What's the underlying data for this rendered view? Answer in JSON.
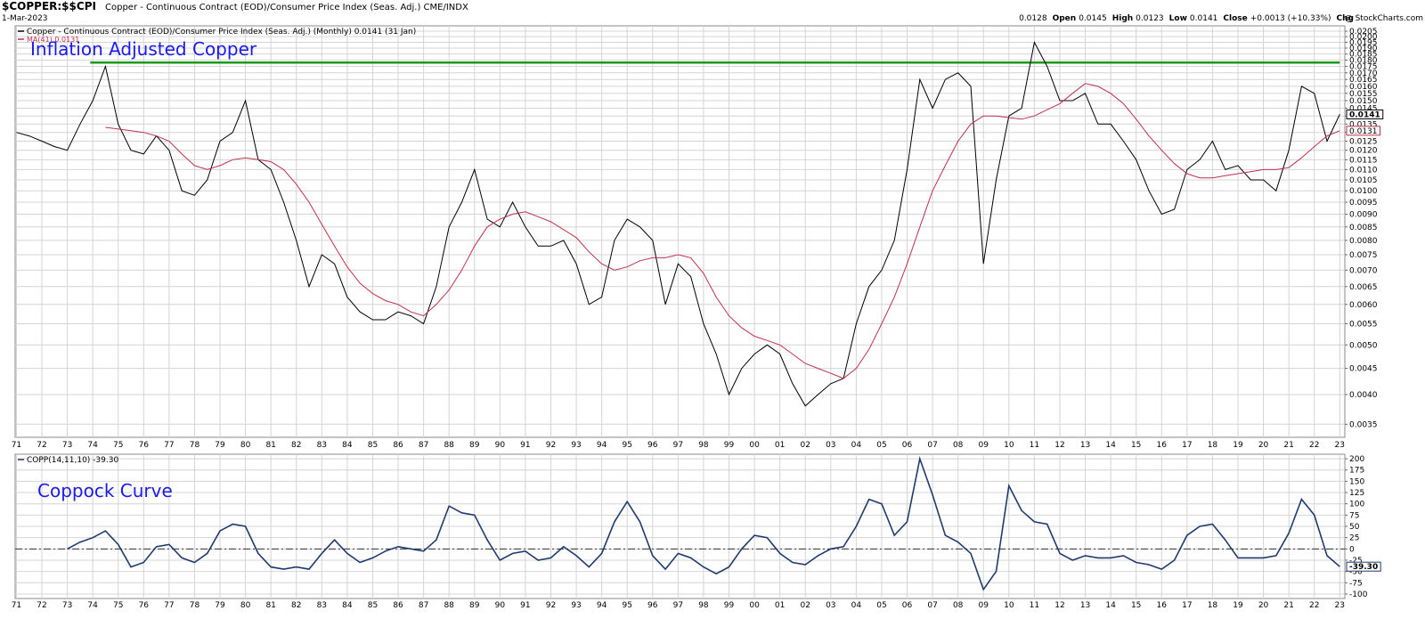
{
  "header": {
    "symbol": "$COPPER:$$CPI",
    "description": "Copper - Continuous Contract (EOD)/Consumer Price Index (Seas. Adj.) CME/INDX",
    "date": "1-Mar-2023",
    "source": "@ StockCharts.com",
    "quote": [
      {
        "label": "Open",
        "value": "0.0128"
      },
      {
        "label": "High",
        "value": "0.0145"
      },
      {
        "label": "Low",
        "value": "0.0123"
      },
      {
        "label": "Close",
        "value": "0.0141"
      },
      {
        "label": "Chg",
        "value": "+0.0013 (+10.33%)"
      }
    ]
  },
  "chart_data": [
    {
      "type": "line",
      "annotation": "Inflation Adjusted Copper",
      "log_scale": true,
      "grid": true,
      "x": [
        1971,
        1971.5,
        1972,
        1972.5,
        1973,
        1973.5,
        1974,
        1974.5,
        1975,
        1975.5,
        1976,
        1976.5,
        1977,
        1977.5,
        1978,
        1978.5,
        1979,
        1979.5,
        1980,
        1980.5,
        1981,
        1981.5,
        1982,
        1982.5,
        1983,
        1983.5,
        1984,
        1984.5,
        1985,
        1985.5,
        1986,
        1986.5,
        1987,
        1987.5,
        1988,
        1988.5,
        1989,
        1989.5,
        1990,
        1990.5,
        1991,
        1991.5,
        1992,
        1992.5,
        1993,
        1993.5,
        1994,
        1994.5,
        1995,
        1995.5,
        1996,
        1996.5,
        1997,
        1997.5,
        1998,
        1998.5,
        1999,
        1999.5,
        2000,
        2000.5,
        2001,
        2001.5,
        2002,
        2002.5,
        2003,
        2003.5,
        2004,
        2004.5,
        2005,
        2005.5,
        2006,
        2006.5,
        2007,
        2007.5,
        2008,
        2008.5,
        2009,
        2009.5,
        2010,
        2010.5,
        2011,
        2011.5,
        2012,
        2012.5,
        2013,
        2013.5,
        2014,
        2014.5,
        2015,
        2015.5,
        2016,
        2016.5,
        2017,
        2017.5,
        2018,
        2018.5,
        2019,
        2019.5,
        2020,
        2020.5,
        2021,
        2021.5,
        2022,
        2022.5,
        2023
      ],
      "series": [
        {
          "name": "Copper - Continuous Contract (EOD)/Consumer Price Index (Seas. Adj.) (Monthly) 0.0141 (31 Jan)",
          "color": "#000000",
          "last_label": "0.0141",
          "values": [
            0.013,
            0.0128,
            0.0125,
            0.0122,
            0.012,
            0.0135,
            0.015,
            0.0175,
            0.0135,
            0.012,
            0.0118,
            0.0128,
            0.012,
            0.01,
            0.0098,
            0.0105,
            0.0125,
            0.013,
            0.015,
            0.0115,
            0.011,
            0.0095,
            0.008,
            0.0065,
            0.0075,
            0.0072,
            0.0062,
            0.0058,
            0.0056,
            0.0056,
            0.0058,
            0.0057,
            0.0055,
            0.0065,
            0.0085,
            0.0095,
            0.011,
            0.0088,
            0.0085,
            0.0095,
            0.0085,
            0.0078,
            0.0078,
            0.008,
            0.0072,
            0.006,
            0.0062,
            0.008,
            0.0088,
            0.0085,
            0.008,
            0.006,
            0.0072,
            0.0068,
            0.0055,
            0.0048,
            0.004,
            0.0045,
            0.0048,
            0.005,
            0.0048,
            0.0042,
            0.0038,
            0.004,
            0.0042,
            0.0043,
            0.0055,
            0.0065,
            0.007,
            0.008,
            0.011,
            0.0165,
            0.0145,
            0.0165,
            0.017,
            0.016,
            0.0072,
            0.0105,
            0.014,
            0.0145,
            0.0195,
            0.0175,
            0.015,
            0.015,
            0.0155,
            0.0135,
            0.0135,
            0.0125,
            0.0115,
            0.01,
            0.009,
            0.0092,
            0.011,
            0.0115,
            0.0125,
            0.011,
            0.0112,
            0.0105,
            0.0105,
            0.01,
            0.012,
            0.016,
            0.0155,
            0.0125,
            0.0141
          ]
        },
        {
          "name": "MA(41) 0.0131",
          "color": "#c0304a",
          "last_label": "0.0131",
          "values": [
            null,
            null,
            null,
            null,
            null,
            null,
            null,
            0.0133,
            0.0132,
            0.0131,
            0.013,
            0.0128,
            0.0125,
            0.0118,
            0.0112,
            0.011,
            0.0112,
            0.0115,
            0.0116,
            0.0115,
            0.0114,
            0.011,
            0.0103,
            0.0095,
            0.0086,
            0.0078,
            0.0071,
            0.0066,
            0.0063,
            0.0061,
            0.006,
            0.0058,
            0.0057,
            0.006,
            0.0064,
            0.007,
            0.0078,
            0.0085,
            0.0088,
            0.009,
            0.0091,
            0.0089,
            0.0087,
            0.0084,
            0.0081,
            0.0076,
            0.0072,
            0.007,
            0.0071,
            0.0073,
            0.0074,
            0.0074,
            0.0075,
            0.0074,
            0.0069,
            0.0062,
            0.0057,
            0.0054,
            0.0052,
            0.0051,
            0.005,
            0.0048,
            0.0046,
            0.0045,
            0.0044,
            0.0043,
            0.0045,
            0.0049,
            0.0055,
            0.0062,
            0.0072,
            0.0085,
            0.01,
            0.0112,
            0.0125,
            0.0135,
            0.014,
            0.014,
            0.0139,
            0.0138,
            0.014,
            0.0144,
            0.0148,
            0.0155,
            0.0162,
            0.016,
            0.0155,
            0.0148,
            0.0138,
            0.0128,
            0.012,
            0.0113,
            0.0108,
            0.0106,
            0.0106,
            0.0107,
            0.0108,
            0.0109,
            0.011,
            0.011,
            0.0111,
            0.0116,
            0.0122,
            0.0128,
            0.0131
          ]
        }
      ],
      "resistance": {
        "value": 0.0178,
        "from": 1973.9,
        "to": 2023,
        "color": "#1a9a1a"
      },
      "xlim": [
        1970.95,
        2023.2
      ],
      "xticks": [
        {
          "value": 1971,
          "label": "71"
        },
        {
          "value": 1972,
          "label": "72"
        },
        {
          "value": 1973,
          "label": "73"
        },
        {
          "value": 1974,
          "label": "74"
        },
        {
          "value": 1975,
          "label": "75"
        },
        {
          "value": 1976,
          "label": "76"
        },
        {
          "value": 1977,
          "label": "77"
        },
        {
          "value": 1978,
          "label": "78"
        },
        {
          "value": 1979,
          "label": "79"
        },
        {
          "value": 1980,
          "label": "80"
        },
        {
          "value": 1981,
          "label": "81"
        },
        {
          "value": 1982,
          "label": "82"
        },
        {
          "value": 1983,
          "label": "83"
        },
        {
          "value": 1984,
          "label": "84"
        },
        {
          "value": 1985,
          "label": "85"
        },
        {
          "value": 1986,
          "label": "86"
        },
        {
          "value": 1987,
          "label": "87"
        },
        {
          "value": 1988,
          "label": "88"
        },
        {
          "value": 1989,
          "label": "89"
        },
        {
          "value": 1990,
          "label": "90"
        },
        {
          "value": 1991,
          "label": "91"
        },
        {
          "value": 1992,
          "label": "92"
        },
        {
          "value": 1993,
          "label": "93"
        },
        {
          "value": 1994,
          "label": "94"
        },
        {
          "value": 1995,
          "label": "95"
        },
        {
          "value": 1996,
          "label": "96"
        },
        {
          "value": 1997,
          "label": "97"
        },
        {
          "value": 1998,
          "label": "98"
        },
        {
          "value": 1999,
          "label": "99"
        },
        {
          "value": 2000,
          "label": "00"
        },
        {
          "value": 2001,
          "label": "01"
        },
        {
          "value": 2002,
          "label": "02"
        },
        {
          "value": 2003,
          "label": "03"
        },
        {
          "value": 2004,
          "label": "04"
        },
        {
          "value": 2005,
          "label": "05"
        },
        {
          "value": 2006,
          "label": "06"
        },
        {
          "value": 2007,
          "label": "07"
        },
        {
          "value": 2008,
          "label": "08"
        },
        {
          "value": 2009,
          "label": "09"
        },
        {
          "value": 2010,
          "label": "10"
        },
        {
          "value": 2011,
          "label": "11"
        },
        {
          "value": 2012,
          "label": "12"
        },
        {
          "value": 2013,
          "label": "13"
        },
        {
          "value": 2014,
          "label": "14"
        },
        {
          "value": 2015,
          "label": "15"
        },
        {
          "value": 2016,
          "label": "16"
        },
        {
          "value": 2017,
          "label": "17"
        },
        {
          "value": 2018,
          "label": "18"
        },
        {
          "value": 2019,
          "label": "19"
        },
        {
          "value": 2020,
          "label": "20"
        },
        {
          "value": 2021,
          "label": "21"
        },
        {
          "value": 2022,
          "label": "22"
        },
        {
          "value": 2023,
          "label": "23"
        }
      ],
      "ylim": [
        0.0033,
        0.021
      ],
      "yticks": [
        0.0035,
        {
          "value": 0.004,
          "label": "0.0040"
        },
        0.0045,
        {
          "value": 0.005,
          "label": "0.0050"
        },
        0.0055,
        {
          "value": 0.006,
          "label": "0.0060"
        },
        0.0065,
        {
          "value": 0.007,
          "label": "0.0070"
        },
        0.0075,
        {
          "value": 0.008,
          "label": "0.0080"
        },
        0.0085,
        {
          "value": 0.009,
          "label": "0.0090"
        },
        0.0095,
        {
          "value": 0.01,
          "label": "0.0100"
        },
        0.0105,
        {
          "value": 0.011,
          "label": "0.0110"
        },
        0.0115,
        {
          "value": 0.012,
          "label": "0.0120"
        },
        0.0125,
        {
          "value": 0.013,
          "label": "0.0130"
        },
        0.0135,
        {
          "value": 0.014,
          "label": "0.0140"
        },
        0.0145,
        {
          "value": 0.015,
          "label": "0.0150"
        },
        0.0155,
        {
          "value": 0.016,
          "label": "0.0160"
        },
        0.0165,
        {
          "value": 0.017,
          "label": "0.0170"
        },
        0.0175,
        {
          "value": 0.018,
          "label": "0.0180"
        },
        0.0185,
        {
          "value": 0.019,
          "label": "0.0190"
        },
        0.0195,
        {
          "value": 0.02,
          "label": "0.0200"
        },
        0.0205
      ]
    },
    {
      "type": "line",
      "annotation": "Coppock Curve",
      "log_scale": false,
      "grid": true,
      "series": [
        {
          "name": "COPP(14,11,10) -39.30",
          "color": "#1f3a6e",
          "last_label": "-39.30",
          "values": [
            null,
            null,
            null,
            null,
            0,
            15,
            25,
            40,
            10,
            -40,
            -30,
            5,
            10,
            -20,
            -30,
            -10,
            40,
            55,
            50,
            -10,
            -40,
            -45,
            -40,
            -45,
            -10,
            20,
            -10,
            -30,
            -20,
            -5,
            5,
            0,
            -5,
            20,
            95,
            80,
            75,
            20,
            -25,
            -10,
            -5,
            -25,
            -20,
            5,
            -15,
            -40,
            -10,
            60,
            105,
            60,
            -15,
            -45,
            -10,
            -20,
            -40,
            -55,
            -40,
            0,
            30,
            25,
            -10,
            -30,
            -35,
            -15,
            0,
            5,
            50,
            110,
            100,
            30,
            60,
            200,
            120,
            30,
            15,
            -10,
            -90,
            -50,
            140,
            85,
            60,
            55,
            -10,
            -25,
            -15,
            -20,
            -20,
            -15,
            -30,
            -35,
            -45,
            -25,
            30,
            50,
            55,
            20,
            -20,
            -20,
            -20,
            -15,
            35,
            110,
            75,
            -15,
            -39.3
          ]
        }
      ],
      "reference_line": 0,
      "ylim": [
        -110,
        210
      ],
      "yticks": [
        -100,
        -75,
        -50,
        -25,
        0,
        25,
        50,
        75,
        100,
        125,
        150,
        175,
        200
      ]
    }
  ]
}
